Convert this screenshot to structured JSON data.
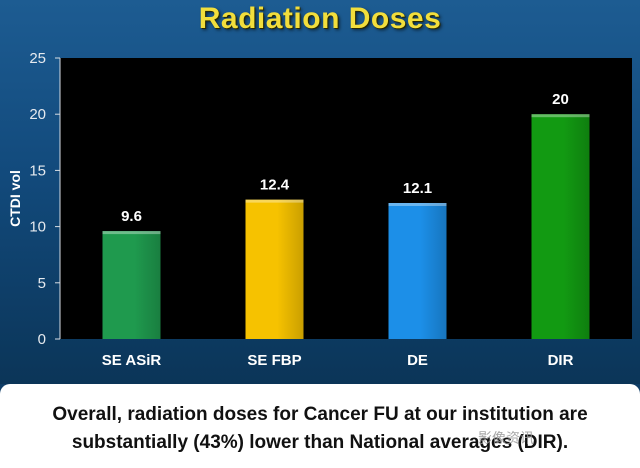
{
  "title": "Radiation Doses",
  "caption": {
    "line1": "Overall, radiation doses for Cancer FU at our institution are",
    "line2": "substantially (43%) lower than National averages (DIR)."
  },
  "watermark": "影像资讯",
  "chart_data": {
    "type": "bar",
    "title": "",
    "xlabel": "",
    "ylabel": "CTDI vol",
    "ylim": [
      0,
      25
    ],
    "yticks": [
      0,
      5,
      10,
      15,
      20,
      25
    ],
    "categories": [
      "SE ASiR",
      "SE FBP",
      "DE",
      "DIR"
    ],
    "values": [
      9.6,
      12.4,
      12.1,
      20
    ],
    "value_labels": [
      "9.6",
      "12.4",
      "12.1",
      "20"
    ],
    "colors": [
      "#1f9a4e",
      "#f6c200",
      "#1c8fe8",
      "#129a12"
    ],
    "plot_background": "#000000",
    "grid": false,
    "legend": "none"
  }
}
